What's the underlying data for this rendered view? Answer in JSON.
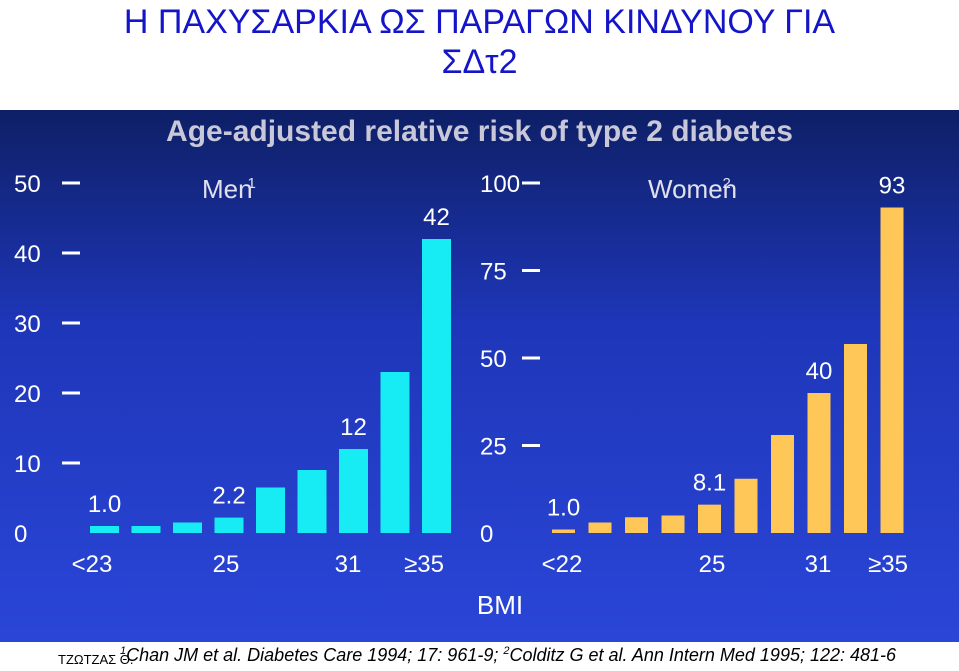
{
  "page": {
    "title_line1": "Η ΠΑΧΥΣΑΡΚΙΑ ΩΣ ΠΑΡΑΓΩΝ ΚΙΝΔΥΝΟΥ ΓΙΑ",
    "title_line2": "ΣΔτ2",
    "chart_title": "Age-adjusted relative risk of type 2 diabetes",
    "footnote_ref1": "1",
    "footnote_text1": "Chan JM et al. Diabetes Care 1994; 17: 961-9; ",
    "footnote_ref2": "2",
    "footnote_text2": "Colditz G et al. Ann Intern Med 1995; 122: 481-6",
    "author": "ΤΖΩΤΖΑΣ Θ."
  },
  "chart_data": [
    {
      "type": "bar",
      "title": "Men",
      "title_sup": "1",
      "color": "#17ecf4",
      "ylim": [
        0,
        50
      ],
      "yticks": [
        "0",
        "10",
        "20",
        "30",
        "40",
        "50"
      ],
      "xtick_labels": [
        "<23",
        "25",
        "31",
        "≥35"
      ],
      "values": [
        1.0,
        1.0,
        1.5,
        2.2,
        6.5,
        9.0,
        12.0,
        23.0,
        42.0
      ],
      "value_labels": [
        "1.0",
        "",
        "",
        "2.2",
        "",
        "",
        "12",
        "",
        "42"
      ]
    },
    {
      "type": "bar",
      "title": "Women",
      "title_sup": "2",
      "color": "#ffc658",
      "ylim": [
        0,
        100
      ],
      "yticks": [
        "0",
        "25",
        "50",
        "75",
        "100"
      ],
      "xtick_labels": [
        "<22",
        "25",
        "31",
        "≥35"
      ],
      "values": [
        1.0,
        3.0,
        4.5,
        5.0,
        8.1,
        15.5,
        28.0,
        40.0,
        54.0,
        93.0
      ],
      "value_labels": [
        "1.0",
        "",
        "",
        "",
        "8.1",
        "",
        "",
        "40",
        "",
        "93"
      ]
    }
  ],
  "xlabel": "BMI"
}
